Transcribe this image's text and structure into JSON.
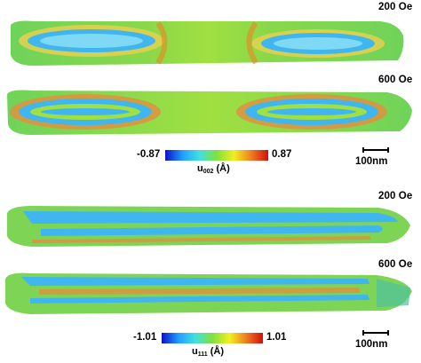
{
  "fields": [
    {
      "label": "200 Oe"
    },
    {
      "label": "600 Oe"
    },
    {
      "label": "200 Oe"
    },
    {
      "label": "600 Oe"
    }
  ],
  "colorbars": [
    {
      "min": "-0.87",
      "max": "0.87",
      "title_main": "u",
      "title_sub": "002",
      "title_unit": " (Å)"
    },
    {
      "min": "-1.01",
      "max": "1.01",
      "title_main": "u",
      "title_sub": "111",
      "title_unit": " (Å)"
    }
  ],
  "scalebars": [
    {
      "label": "100nm"
    },
    {
      "label": "100nm"
    }
  ],
  "colormap": [
    "#1010c8",
    "#20a0ff",
    "#40e0e0",
    "#80e040",
    "#f0f020",
    "#f08020",
    "#d01010"
  ]
}
